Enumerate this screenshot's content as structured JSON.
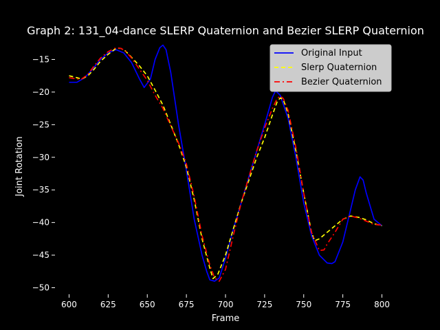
{
  "chart_data": {
    "type": "line",
    "title": "Graph 2: 131_04-dance SLERP Quaternion and Bezier SLERP Quaternion",
    "xlabel": "Frame",
    "ylabel": "Joint Rotation",
    "xlim": [
      591,
      809
    ],
    "ylim": [
      -51,
      -12
    ],
    "xticks": [
      600,
      625,
      650,
      675,
      700,
      725,
      750,
      775,
      800
    ],
    "yticks": [
      -50,
      -45,
      -40,
      -35,
      -30,
      -25,
      -20,
      -15
    ],
    "grid": false,
    "legend_position": "upper right",
    "background": "#000000",
    "series": [
      {
        "name": "Original Input",
        "color": "#0000ff",
        "style": "solid",
        "x": [
          600,
          605,
          610,
          615,
          620,
          625,
          630,
          635,
          640,
          645,
          648,
          652,
          655,
          658,
          660,
          662,
          665,
          670,
          675,
          680,
          685,
          688,
          690,
          693,
          696,
          700,
          705,
          710,
          715,
          720,
          725,
          728,
          730,
          732,
          735,
          740,
          745,
          750,
          755,
          760,
          765,
          768,
          770,
          775,
          780,
          783,
          786,
          788,
          790,
          795,
          800
        ],
        "values": [
          -18.5,
          -18.5,
          -17.8,
          -16.5,
          -15,
          -14,
          -13.5,
          -14,
          -15.5,
          -18,
          -19.3,
          -18,
          -15,
          -13.2,
          -12.8,
          -13.5,
          -17,
          -25,
          -32,
          -39.5,
          -45,
          -47.5,
          -48.8,
          -49,
          -48.5,
          -45.5,
          -41,
          -37,
          -33,
          -29,
          -25,
          -22.5,
          -20.8,
          -19.8,
          -20.5,
          -24,
          -30,
          -37,
          -42,
          -45,
          -46.2,
          -46.3,
          -46,
          -43,
          -38,
          -35,
          -33,
          -33.5,
          -35.5,
          -39.5,
          -40.5
        ]
      },
      {
        "name": "Slerp Quaternion",
        "color": "#ffff00",
        "style": "dashed",
        "x": [
          600,
          605,
          608,
          612,
          616,
          620,
          625,
          630,
          633,
          636,
          640,
          645,
          650,
          655,
          660,
          665,
          670,
          675,
          680,
          685,
          690,
          692,
          695,
          700,
          705,
          710,
          715,
          720,
          725,
          730,
          733,
          735,
          737,
          740,
          745,
          750,
          755,
          757,
          760,
          765,
          770,
          775,
          780,
          785,
          790,
          795,
          800
        ],
        "values": [
          -17.5,
          -17.8,
          -18,
          -17.5,
          -16.5,
          -15.3,
          -14.2,
          -13.3,
          -13.3,
          -13.7,
          -14.7,
          -16,
          -17.5,
          -19.7,
          -22,
          -25,
          -28,
          -31.5,
          -36.5,
          -42.5,
          -47,
          -48.6,
          -48,
          -45,
          -41,
          -37,
          -33.5,
          -30,
          -27,
          -23.5,
          -21.5,
          -20.9,
          -21.2,
          -23.3,
          -29,
          -35.5,
          -41.5,
          -42.8,
          -42.5,
          -41.5,
          -40.5,
          -39.5,
          -39,
          -39.2,
          -39.6,
          -40.2,
          -40.5
        ]
      },
      {
        "name": "Bezier Quaternion",
        "color": "#ff0000",
        "style": "dashdot",
        "x": [
          600,
          605,
          608,
          612,
          616,
          620,
          625,
          630,
          633,
          636,
          640,
          645,
          650,
          655,
          660,
          665,
          670,
          675,
          680,
          685,
          690,
          693,
          696,
          700,
          705,
          710,
          715,
          720,
          725,
          730,
          733,
          735,
          737,
          740,
          745,
          750,
          755,
          760,
          763,
          765,
          770,
          775,
          780,
          785,
          790,
          795,
          800
        ],
        "values": [
          -17.8,
          -18,
          -18,
          -17.3,
          -16,
          -14.8,
          -13.8,
          -13.2,
          -13.3,
          -13.7,
          -14.8,
          -16.5,
          -18.2,
          -20.5,
          -22.5,
          -25.2,
          -27.8,
          -31,
          -36,
          -42,
          -46.5,
          -48.5,
          -49,
          -47.2,
          -42,
          -37,
          -33,
          -29,
          -25.5,
          -22.5,
          -21,
          -20.6,
          -21,
          -22.8,
          -28.5,
          -35.5,
          -41.5,
          -44.3,
          -44.2,
          -43.3,
          -41.5,
          -39.5,
          -39,
          -39.3,
          -39.8,
          -40.3,
          -40.4
        ]
      }
    ]
  }
}
